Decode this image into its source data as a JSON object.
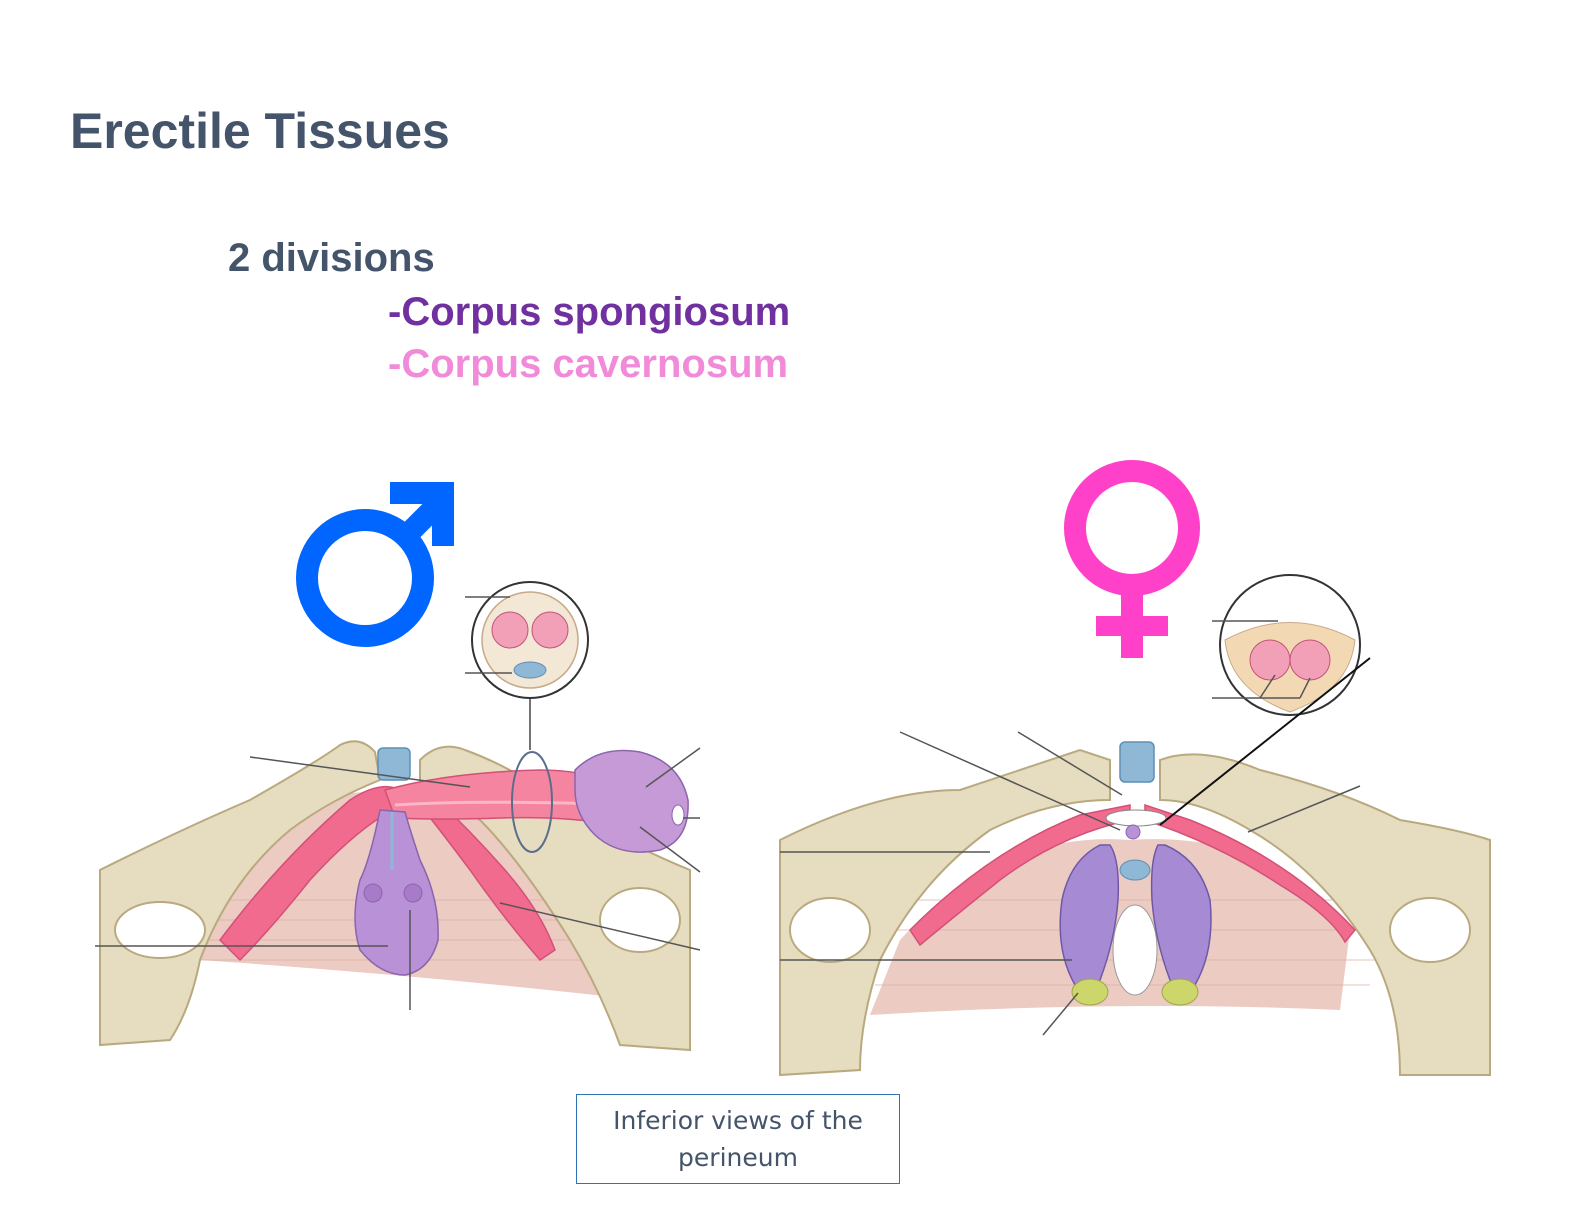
{
  "slide": {
    "title": "Erectile Tissues",
    "divisions_heading": "2 divisions",
    "division_1": "-Corpus spongiosum",
    "division_2": "-Corpus cavernosum",
    "caption": "Inferior views of the perineum"
  },
  "colors": {
    "title": "#44546a",
    "corpus_spongiosum": "#7030a0",
    "corpus_cavernosum": "#f08ad9",
    "male_symbol": "#0066ff",
    "female_symbol": "#ff40c8",
    "caption_border": "#2e75b6",
    "bone": "#e6dcc0",
    "muscle": "#eccbc2",
    "cavernous_tissue": "#f06b8e",
    "bulb": "#b891d6",
    "urethra": "#8fb7d6"
  },
  "icons": {
    "male": "male-symbol-icon",
    "female": "female-symbol-icon"
  }
}
